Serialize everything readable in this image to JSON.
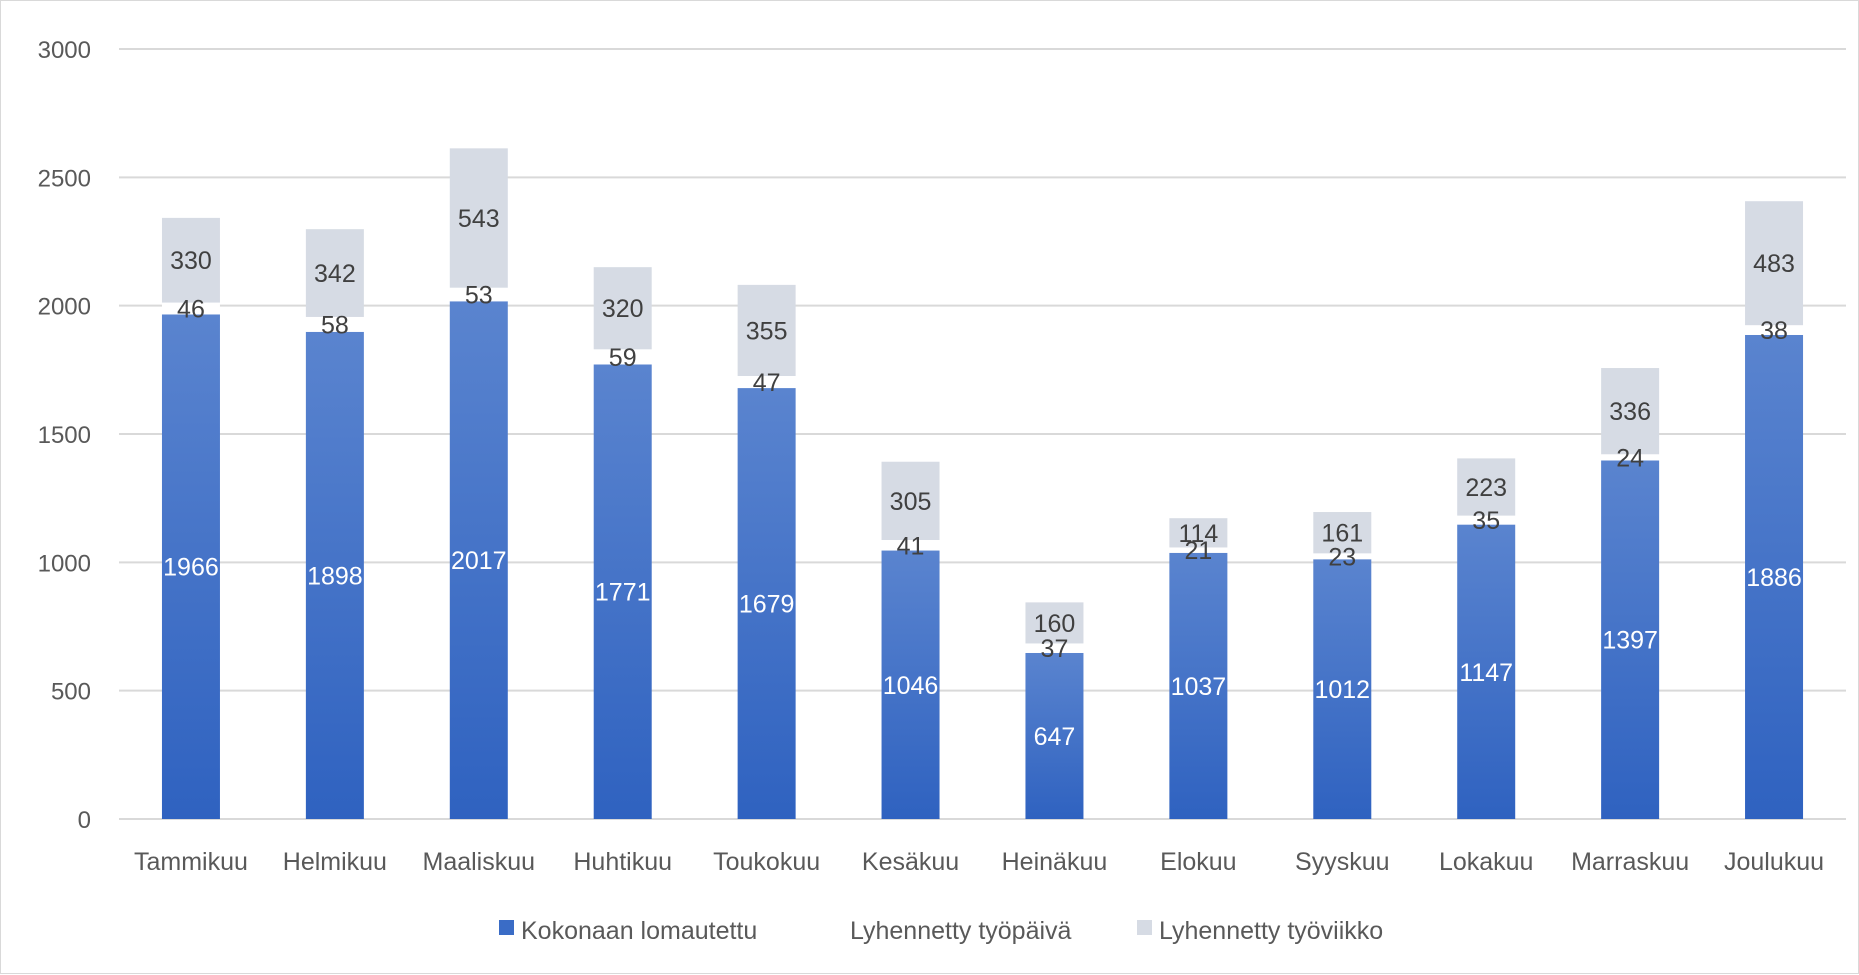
{
  "chart_data": {
    "type": "bar",
    "stacked": true,
    "categories": [
      "Tammikuu",
      "Helmikuu",
      "Maaliskuu",
      "Huhtikuu",
      "Toukokuu",
      "Kesäkuu",
      "Heinäkuu",
      "Elokuu",
      "Syyskuu",
      "Lokakuu",
      "Marraskuu",
      "Joulukuu"
    ],
    "series": [
      {
        "name": "Kokonaan lomautettu",
        "color": "#3a6cc6",
        "values": [
          1966,
          1898,
          2017,
          1771,
          1679,
          1046,
          647,
          1037,
          1012,
          1147,
          1397,
          1886
        ]
      },
      {
        "name": "Lyhennetty työpäivä",
        "color": "#ffffff",
        "values": [
          46,
          58,
          53,
          59,
          47,
          41,
          37,
          21,
          23,
          35,
          24,
          38
        ]
      },
      {
        "name": "Lyhennetty työviikko",
        "color": "#d6dbe4",
        "values": [
          330,
          342,
          543,
          320,
          355,
          305,
          160,
          114,
          161,
          223,
          336,
          483
        ]
      }
    ],
    "yticks": [
      0,
      500,
      1000,
      1500,
      2000,
      2500,
      3000
    ],
    "ylim": [
      0,
      3000
    ],
    "grid": true,
    "legend_position": "bottom",
    "title": "",
    "xlabel": "",
    "ylabel": ""
  }
}
